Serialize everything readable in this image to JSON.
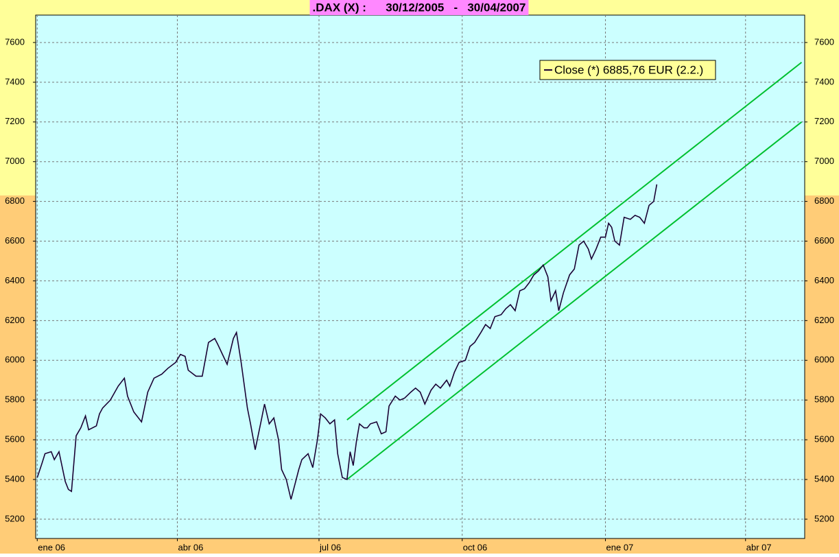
{
  "chart_data": {
    "type": "line",
    "title": ".DAX (X) :      30/12/2005   -   30/04/2007",
    "xlim": [
      -1,
      493
    ],
    "xticks": [
      {
        "value": 0,
        "label": "ene 06"
      },
      {
        "value": 90,
        "label": "abr 06"
      },
      {
        "value": 181,
        "label": "jul 06"
      },
      {
        "value": 273,
        "label": "oct 06"
      },
      {
        "value": 365,
        "label": "ene 07"
      },
      {
        "value": 455,
        "label": "abr 07"
      }
    ],
    "ylim": [
      5103,
      7738
    ],
    "yticks": [
      5200,
      5400,
      5600,
      5800,
      6000,
      6200,
      6400,
      6600,
      6800,
      7000,
      7200,
      7400,
      7600
    ],
    "grid": true,
    "series": [
      {
        "name": "Close (*) 6885,76 EUR (2.2.)",
        "color": "#1a0033",
        "x": [
          0,
          3,
          5,
          9,
          11,
          14,
          18,
          20,
          22,
          25,
          28,
          31,
          33,
          38,
          40,
          42,
          47,
          52,
          56,
          58,
          62,
          67,
          71,
          75,
          80,
          84,
          89,
          92,
          95,
          97,
          102,
          106,
          110,
          114,
          116,
          119,
          122,
          126,
          128,
          131,
          135,
          137,
          140,
          144,
          146,
          149,
          152,
          155,
          157,
          160,
          163,
          166,
          168,
          170,
          174,
          177,
          180,
          182,
          185,
          188,
          191,
          193,
          196,
          199,
          201,
          203,
          205,
          207,
          210,
          212,
          214,
          218,
          221,
          224,
          226,
          230,
          233,
          236,
          240,
          243,
          246,
          249,
          253,
          256,
          259,
          263,
          265,
          268,
          271,
          275,
          278,
          281,
          285,
          288,
          291,
          294,
          298,
          301,
          304,
          307,
          310,
          313,
          316,
          319,
          322,
          325,
          328,
          330,
          333,
          335,
          338,
          342,
          345,
          348,
          351,
          354,
          356,
          359,
          362,
          365,
          367,
          369,
          371,
          374,
          377,
          381,
          384,
          387,
          390,
          393,
          396,
          398
        ],
        "values": [
          5410,
          5480,
          5530,
          5540,
          5500,
          5540,
          5390,
          5350,
          5340,
          5620,
          5660,
          5720,
          5650,
          5670,
          5730,
          5760,
          5800,
          5870,
          5910,
          5820,
          5740,
          5690,
          5840,
          5910,
          5930,
          5960,
          5990,
          6030,
          6020,
          5950,
          5920,
          5920,
          6090,
          6110,
          6080,
          6030,
          5980,
          6110,
          6140,
          5990,
          5760,
          5680,
          5550,
          5700,
          5780,
          5680,
          5710,
          5600,
          5450,
          5400,
          5300,
          5390,
          5450,
          5500,
          5530,
          5460,
          5600,
          5730,
          5710,
          5680,
          5700,
          5530,
          5410,
          5400,
          5540,
          5470,
          5590,
          5680,
          5660,
          5660,
          5680,
          5690,
          5630,
          5640,
          5770,
          5820,
          5800,
          5810,
          5840,
          5860,
          5840,
          5780,
          5850,
          5880,
          5860,
          5900,
          5870,
          5940,
          5990,
          6000,
          6070,
          6090,
          6140,
          6180,
          6160,
          6220,
          6230,
          6260,
          6280,
          6250,
          6350,
          6360,
          6390,
          6430,
          6450,
          6480,
          6420,
          6300,
          6350,
          6250,
          6340,
          6430,
          6460,
          6580,
          6600,
          6560,
          6510,
          6560,
          6620,
          6620,
          6690,
          6670,
          6600,
          6580,
          6720,
          6710,
          6730,
          6720,
          6690,
          6780,
          6800,
          6885.76
        ]
      }
    ],
    "trend_lines": [
      {
        "color": "#00c030",
        "x": [
          199,
          491
        ],
        "values": [
          5700,
          7500
        ]
      },
      {
        "color": "#00c030",
        "x": [
          199,
          491
        ],
        "values": [
          5400,
          7200
        ]
      }
    ]
  }
}
